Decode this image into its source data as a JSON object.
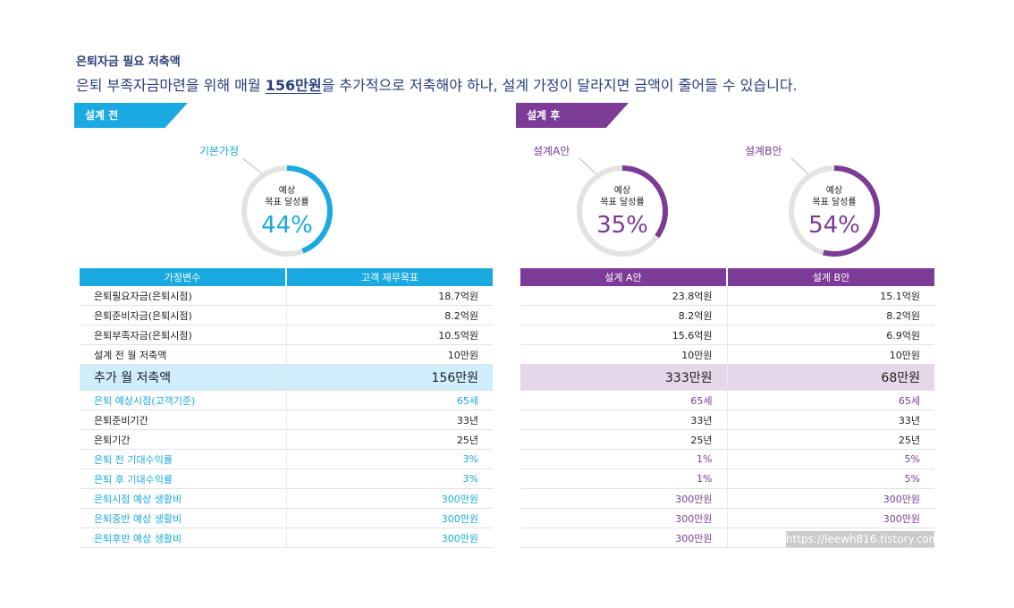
{
  "header": {
    "kicker": "은퇴자금 필요 저축액",
    "headline_pre": "은퇴 부족자금마련을 위해 매월 ",
    "headline_highlight": "156만원",
    "headline_post": "을 추가적으로 저축해야 하나, 설계 가정이 달라지면 금액이 줄어들 수 있습니다."
  },
  "before": {
    "banner": "설계 전",
    "color": "#1aa9e0",
    "gauge": {
      "callout": "기본가정",
      "line1": "예상",
      "line2": "목표 달성률",
      "percent_text": "44%",
      "value": 44
    }
  },
  "after": {
    "banner": "설계 후",
    "color": "#7b3b96",
    "gauges": [
      {
        "callout": "설계A안",
        "line1": "예상",
        "line2": "목표 달성률",
        "percent_text": "35%",
        "value": 35
      },
      {
        "callout": "설계B안",
        "line1": "예상",
        "line2": "목표 달성률",
        "percent_text": "54%",
        "value": 54
      }
    ]
  },
  "table_left": {
    "headers": [
      "가정변수",
      "고객 재무목표"
    ],
    "rows": [
      {
        "label": "은퇴필요자금(은퇴시점)",
        "value": "18.7억원"
      },
      {
        "label": "은퇴준비자금(은퇴시점)",
        "value": "8.2억원"
      },
      {
        "label": "은퇴부족자금(은퇴시점)",
        "value": "10.5억원"
      },
      {
        "label": "설계 전 월 저축액",
        "value": "10만원"
      },
      {
        "label": "추가 월 저축액",
        "value": "156만원"
      },
      {
        "label": "은퇴 예상시점(고객기준)",
        "value": "65세"
      },
      {
        "label": "은퇴준비기간",
        "value": "33년"
      },
      {
        "label": "은퇴기간",
        "value": "25년"
      },
      {
        "label": "은퇴 전 기대수익률",
        "value": "3%"
      },
      {
        "label": "은퇴 후 기대수익률",
        "value": "3%"
      },
      {
        "label": "은퇴시점 예상 생활비",
        "value": "300만원"
      },
      {
        "label": "은퇴중반 예상 생활비",
        "value": "300만원"
      },
      {
        "label": "은퇴후반 예상 생활비",
        "value": "300만원"
      }
    ]
  },
  "table_right": {
    "headers": [
      "설계 A안",
      "설계 B안"
    ],
    "rows": [
      {
        "a": "23.8억원",
        "b": "15.1억원"
      },
      {
        "a": "8.2억원",
        "b": "8.2억원"
      },
      {
        "a": "15.6억원",
        "b": "6.9억원"
      },
      {
        "a": "10만원",
        "b": "10만원"
      },
      {
        "a": "333만원",
        "b": "68만원"
      },
      {
        "a": "65세",
        "b": "65세"
      },
      {
        "a": "33년",
        "b": "33년"
      },
      {
        "a": "25년",
        "b": "25년"
      },
      {
        "a": "1%",
        "b": "5%"
      },
      {
        "a": "1%",
        "b": "5%"
      },
      {
        "a": "300만원",
        "b": "300만원"
      },
      {
        "a": "300만원",
        "b": "300만원"
      },
      {
        "a": "300만원",
        "b": "300만원"
      }
    ]
  },
  "watermark": "https://leewh816.tistory.com"
}
